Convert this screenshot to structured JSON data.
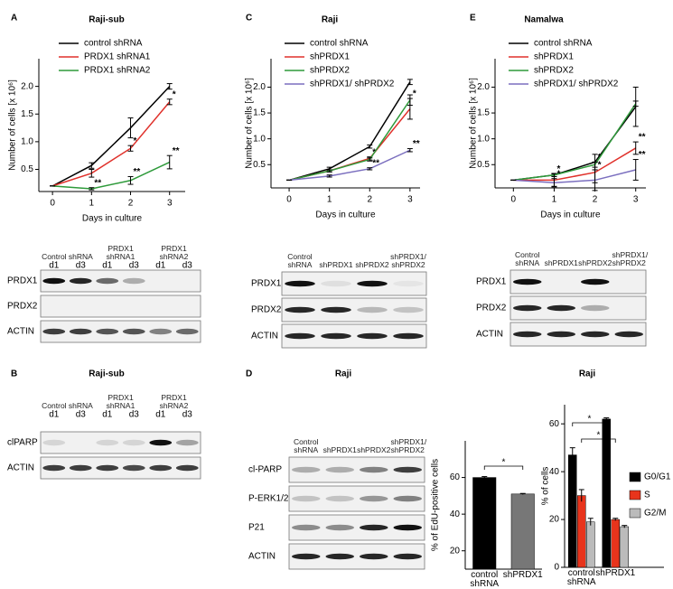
{
  "panel_labels": [
    "A",
    "C",
    "E",
    "B",
    "D"
  ],
  "chart_data": [
    {
      "type": "line",
      "title": "Raji-sub",
      "x_label": "Days in culture",
      "y_label": "Number of cells [x 10⁶]",
      "x": [
        0,
        1,
        2,
        3
      ],
      "xlim": [
        -0.35,
        3.4
      ],
      "xticks": [
        0,
        1,
        2,
        3
      ],
      "ylim": [
        0.1,
        2.5
      ],
      "yticks": [
        0.5,
        {
          "value": 1,
          "label": "1.0"
        },
        1.5,
        {
          "value": 2,
          "label": "2.0"
        }
      ],
      "series": [
        {
          "name": "control shRNA",
          "color": "#000000",
          "values": [
            0.2,
            0.57,
            1.25,
            2.0
          ],
          "error": [
            0,
            0.05,
            0.18,
            0.05
          ],
          "significance": [
            null,
            null,
            null,
            null
          ]
        },
        {
          "name": "PRDX1 shRNA1",
          "color": "#e0312b",
          "values": [
            0.2,
            0.43,
            0.88,
            1.72
          ],
          "error": [
            0,
            0.07,
            0.05,
            0.05
          ],
          "significance": [
            null,
            null,
            "*",
            "*"
          ]
        },
        {
          "name": "PRDX1 shRNA2",
          "color": "#2e9a3a",
          "values": [
            0.2,
            0.15,
            0.3,
            0.63
          ],
          "error": [
            0,
            0.02,
            0.07,
            0.12
          ],
          "significance": [
            null,
            "**",
            "**",
            "**"
          ]
        }
      ]
    },
    {
      "type": "line",
      "title": "Raji",
      "x_label": "Days in culture",
      "y_label": "Number of cells [x 10⁶]",
      "x": [
        0,
        1,
        2,
        3
      ],
      "xlim": [
        -0.45,
        3.25
      ],
      "xticks": [
        0,
        1,
        2,
        3
      ],
      "ylim": [
        0.05,
        2.55
      ],
      "yticks": [
        0.5,
        {
          "value": 1,
          "label": "1.0"
        },
        1.5,
        {
          "value": 2,
          "label": "2.0"
        }
      ],
      "series": [
        {
          "name": "control shRNA",
          "color": "#000000",
          "values": [
            0.2,
            0.42,
            0.85,
            2.1
          ],
          "error": [
            0,
            0.03,
            0.03,
            0.05
          ],
          "significance": [
            null,
            null,
            null,
            null
          ]
        },
        {
          "name": "shPRDX1",
          "color": "#e0312b",
          "values": [
            0.2,
            0.38,
            0.62,
            1.58
          ],
          "error": [
            0,
            0.02,
            0.03,
            0.2
          ],
          "significance": [
            null,
            null,
            "*",
            "*"
          ]
        },
        {
          "name": "shPRDX2",
          "color": "#2e9a3a",
          "values": [
            0.2,
            0.38,
            0.6,
            1.75
          ],
          "error": [
            0,
            0.02,
            0.03,
            0.1
          ],
          "significance": [
            null,
            null,
            null,
            null
          ]
        },
        {
          "name": "shPRDX1/ shPRDX2",
          "color": "#7b6fbf",
          "values": [
            0.2,
            0.28,
            0.42,
            0.78
          ],
          "error": [
            0,
            0.02,
            0.02,
            0.03
          ],
          "significance": [
            null,
            null,
            "**",
            "**"
          ]
        }
      ]
    },
    {
      "type": "line",
      "title": "Namalwa",
      "x_label": "Days in culture",
      "y_label": "Number of cells [x 10⁶]",
      "x": [
        0,
        1,
        2,
        3
      ],
      "xlim": [
        -0.45,
        3.25
      ],
      "xticks": [
        0,
        1,
        2,
        3
      ],
      "ylim": [
        0.05,
        2.55
      ],
      "yticks": [
        0.5,
        {
          "value": 1,
          "label": "1.0"
        },
        1.5,
        {
          "value": 2,
          "label": "2.0"
        }
      ],
      "series": [
        {
          "name": "control shRNA",
          "color": "#000000",
          "values": [
            0.2,
            0.3,
            0.55,
            1.62
          ],
          "error": [
            0,
            0.03,
            0.15,
            0.38
          ],
          "significance": [
            null,
            null,
            null,
            null
          ]
        },
        {
          "name": "shPRDX1",
          "color": "#e0312b",
          "values": [
            0.2,
            0.2,
            0.35,
            0.82
          ],
          "error": [
            0,
            0.12,
            0.2,
            0.12
          ],
          "significance": [
            null,
            "*",
            "*",
            "**"
          ]
        },
        {
          "name": "shPRDX2",
          "color": "#2e9a3a",
          "values": [
            0.2,
            0.3,
            0.5,
            1.68
          ],
          "error": [
            0,
            0.03,
            0.05,
            0.05
          ],
          "significance": [
            null,
            null,
            null,
            null
          ]
        },
        {
          "name": "shPRDX1/ shPRDX2",
          "color": "#7b6fbf",
          "values": [
            0.2,
            0.15,
            0.2,
            0.4
          ],
          "error": [
            0,
            0.08,
            0.2,
            0.2
          ],
          "significance": [
            null,
            "*",
            "*",
            "**"
          ]
        }
      ]
    },
    {
      "type": "bar",
      "y_label": "% of EdU-positive cells",
      "categories": [
        "control shRNA",
        "shPRDX1"
      ],
      "values": [
        60,
        51
      ],
      "errors": [
        0.5,
        0.3
      ],
      "colors": [
        "#000000",
        "#777777"
      ],
      "ylim": [
        10,
        80
      ],
      "yticks": [
        20,
        40,
        60
      ],
      "brackets": [
        "*"
      ]
    },
    {
      "type": "bar",
      "title": "Raji",
      "y_label": "% of cells",
      "categories": [
        "control shRNA",
        "shPRDX1"
      ],
      "series": [
        {
          "name": "G0/G1",
          "color": "#000000",
          "values": [
            47,
            62
          ],
          "errors": [
            3,
            0.5
          ]
        },
        {
          "name": "S",
          "color": "#e8341c",
          "values": [
            30,
            20
          ],
          "errors": [
            2.5,
            0.5
          ]
        },
        {
          "name": "G2/M",
          "color": "#bbbbbb",
          "values": [
            19,
            17
          ],
          "errors": [
            1.5,
            0.5
          ]
        }
      ],
      "ylim": [
        0,
        68
      ],
      "yticks": [
        0,
        20,
        40,
        60
      ],
      "brackets": [
        "*",
        "*"
      ]
    }
  ],
  "blots": [
    {
      "lanes": [
        {
          "label": "Control shRNA",
          "days": [
            "d1",
            "d3"
          ]
        },
        {
          "label": "PRDX1 shRNA1",
          "days": [
            "d1",
            "d3"
          ]
        },
        {
          "label": "PRDX1 shRNA2",
          "days": [
            "d1",
            "d3"
          ]
        }
      ],
      "rows": [
        "PRDX1",
        "PRDX2",
        "ACTIN"
      ]
    },
    {
      "title": "Raji-sub",
      "lanes": [
        {
          "label": "Control shRNA",
          "days": [
            "d1",
            "d3"
          ]
        },
        {
          "label": "PRDX1 shRNA1",
          "days": [
            "d1",
            "d3"
          ]
        },
        {
          "label": "PRDX1 shRNA2",
          "days": [
            "d1",
            "d3"
          ]
        }
      ],
      "rows": [
        "clPARP",
        "ACTIN"
      ]
    },
    {
      "lanes": [
        {
          "label": "Control shRNA"
        },
        {
          "label": "shPRDX1"
        },
        {
          "label": "shPRDX2"
        },
        {
          "label": "shPRDX1/ shPRDX2"
        }
      ],
      "rows": [
        "PRDX1",
        "PRDX2",
        "ACTIN"
      ]
    },
    {
      "title": "Raji",
      "lanes": [
        {
          "label": "Control shRNA"
        },
        {
          "label": "shPRDX1"
        },
        {
          "label": "shPRDX2"
        },
        {
          "label": "shPRDX1/ shPRDX2"
        }
      ],
      "rows": [
        "cl-PARP",
        "P-ERK1/2",
        "P21",
        "ACTIN"
      ]
    },
    {
      "lanes": [
        {
          "label": "Control shRNA"
        },
        {
          "label": "shPRDX1"
        },
        {
          "label": "shPRDX2"
        },
        {
          "label": "shPRDX1/ shPRDX2"
        }
      ],
      "rows": [
        "PRDX1",
        "PRDX2",
        "ACTIN"
      ]
    }
  ]
}
